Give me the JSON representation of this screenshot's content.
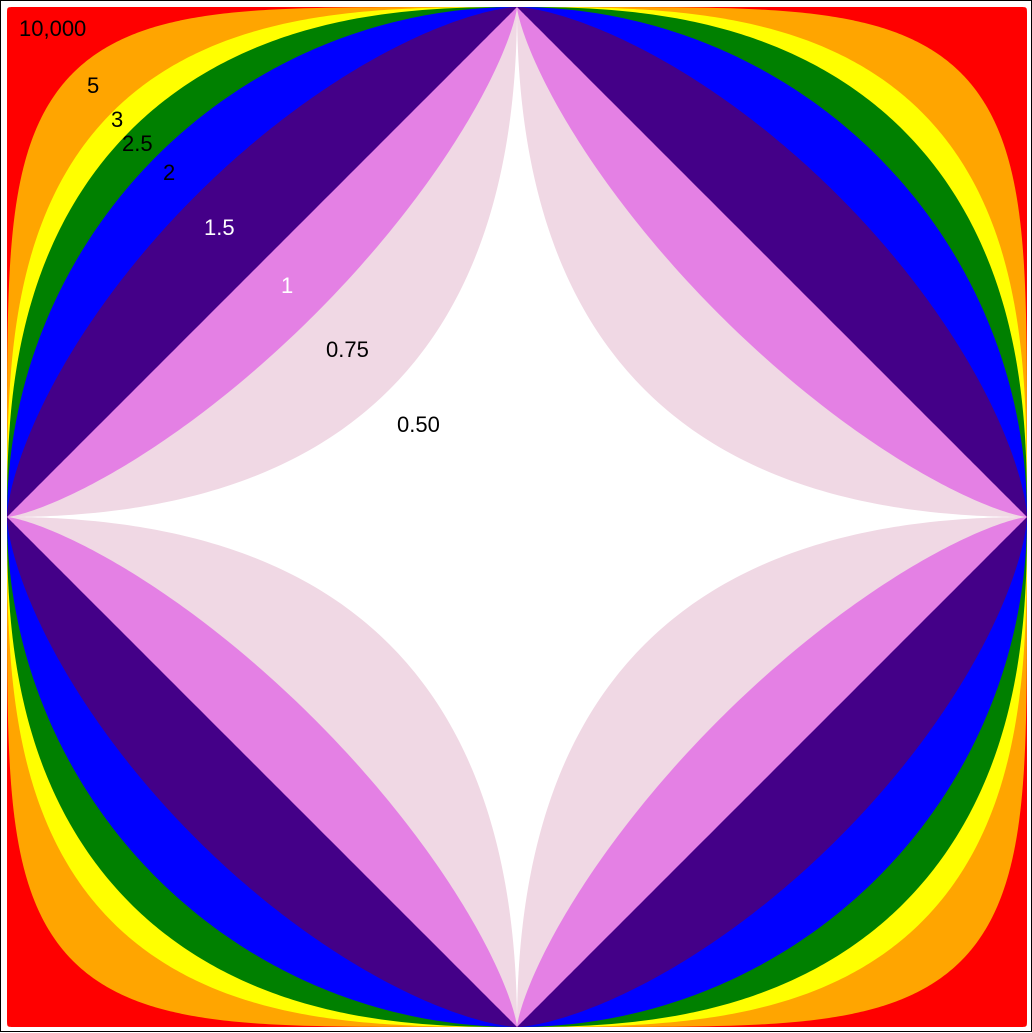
{
  "diagram": {
    "background": "#ffffff",
    "border_color": "#000000",
    "curves": [
      {
        "label": "10,000",
        "exponent": 10000,
        "color": "#ff0000",
        "label_color": "#000000"
      },
      {
        "label": "5",
        "exponent": 5,
        "color": "#ffa500",
        "label_color": "#000000"
      },
      {
        "label": "3",
        "exponent": 3,
        "color": "#ffff00",
        "label_color": "#000000"
      },
      {
        "label": "2.5",
        "exponent": 2.5,
        "color": "#008000",
        "label_color": "#000000"
      },
      {
        "label": "2",
        "exponent": 2,
        "color": "#0000ff",
        "label_color": "#000000"
      },
      {
        "label": "1.5",
        "exponent": 1.5,
        "color": "#440088",
        "label_color": "#ffffff"
      },
      {
        "label": "1",
        "exponent": 1,
        "color": "#e480e4",
        "label_color": "#ffffff"
      },
      {
        "label": "0.75",
        "exponent": 0.75,
        "color": "#f0d8e4",
        "label_color": "#000000"
      },
      {
        "label": "0.50",
        "exponent": 0.5,
        "color": "#ffffff",
        "label_color": "#000000"
      }
    ]
  }
}
